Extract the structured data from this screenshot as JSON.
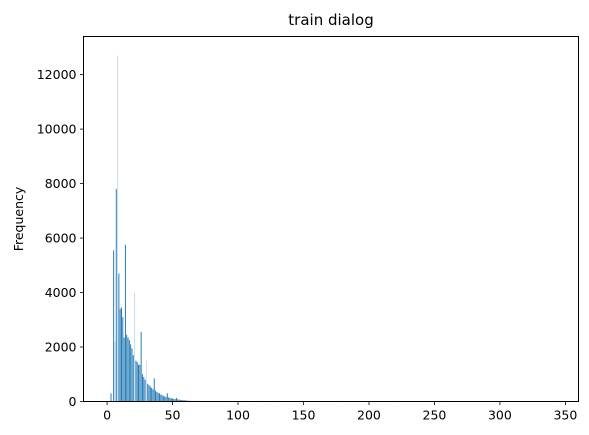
{
  "chart_data": {
    "type": "bar",
    "title": "train dialog",
    "xlabel": "",
    "ylabel": "Frequency",
    "xlim": [
      -18,
      360
    ],
    "ylim": [
      0,
      13400
    ],
    "x_ticks": [
      0,
      50,
      100,
      150,
      200,
      250,
      300,
      350
    ],
    "y_ticks": [
      0,
      2000,
      4000,
      6000,
      8000,
      10000,
      12000
    ],
    "bar_color": "#1f77b4",
    "light_bar_color": "#c6dbef",
    "grid": false,
    "legend": "none",
    "series": [
      {
        "values": [
          [
            3,
            300
          ],
          [
            5,
            5550
          ],
          [
            6,
            2200
          ],
          [
            7,
            7800
          ],
          [
            8,
            12700
          ],
          [
            9,
            4700
          ],
          [
            10,
            3400
          ],
          [
            11,
            3450
          ],
          [
            12,
            3100
          ],
          [
            13,
            2350
          ],
          [
            14,
            5750
          ],
          [
            15,
            2450
          ],
          [
            16,
            2350
          ],
          [
            17,
            2250
          ],
          [
            18,
            2100
          ],
          [
            19,
            1950
          ],
          [
            20,
            1700
          ],
          [
            21,
            4000
          ],
          [
            22,
            1500
          ],
          [
            23,
            1450
          ],
          [
            24,
            1350
          ],
          [
            25,
            1350
          ],
          [
            26,
            2550
          ],
          [
            27,
            1000
          ],
          [
            28,
            900
          ],
          [
            29,
            800
          ],
          [
            30,
            1500
          ],
          [
            31,
            650
          ],
          [
            32,
            600
          ],
          [
            33,
            550
          ],
          [
            34,
            500
          ],
          [
            35,
            450
          ],
          [
            36,
            850
          ],
          [
            37,
            400
          ],
          [
            38,
            350
          ],
          [
            39,
            320
          ],
          [
            40,
            300
          ],
          [
            41,
            250
          ],
          [
            42,
            240
          ],
          [
            43,
            200
          ],
          [
            44,
            180
          ],
          [
            45,
            170
          ],
          [
            46,
            300
          ],
          [
            47,
            150
          ],
          [
            48,
            130
          ],
          [
            49,
            120
          ],
          [
            50,
            110
          ],
          [
            51,
            100
          ],
          [
            52,
            90
          ],
          [
            53,
            130
          ],
          [
            54,
            80
          ],
          [
            55,
            70
          ],
          [
            56,
            60
          ],
          [
            57,
            55
          ],
          [
            58,
            50
          ],
          [
            59,
            45
          ],
          [
            60,
            40
          ],
          [
            61,
            35
          ],
          [
            62,
            30
          ],
          [
            63,
            25
          ],
          [
            64,
            25
          ],
          [
            65,
            20
          ],
          [
            66,
            20
          ],
          [
            67,
            18
          ],
          [
            68,
            15
          ],
          [
            69,
            15
          ],
          [
            70,
            12
          ],
          [
            72,
            10
          ],
          [
            74,
            10
          ],
          [
            76,
            8
          ],
          [
            78,
            8
          ],
          [
            80,
            6
          ],
          [
            82,
            5
          ],
          [
            85,
            5
          ],
          [
            88,
            4
          ],
          [
            92,
            3
          ],
          [
            98,
            3
          ],
          [
            105,
            2
          ],
          [
            115,
            2
          ],
          [
            130,
            1
          ],
          [
            150,
            1
          ],
          [
            180,
            1
          ],
          [
            220,
            1
          ],
          [
            260,
            1
          ],
          [
            345,
            1
          ]
        ]
      }
    ]
  }
}
